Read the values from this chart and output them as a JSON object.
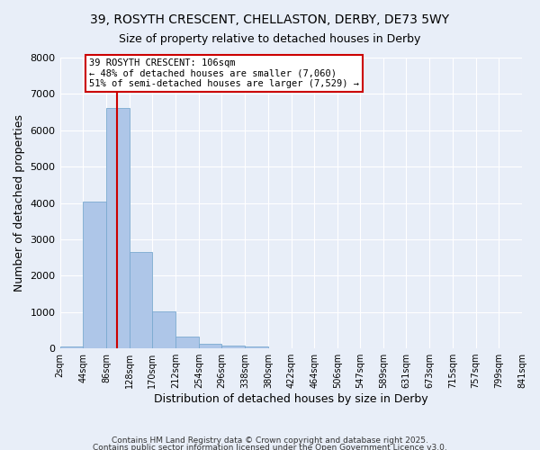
{
  "title1": "39, ROSYTH CRESCENT, CHELLASTON, DERBY, DE73 5WY",
  "title2": "Size of property relative to detached houses in Derby",
  "xlabel": "Distribution of detached houses by size in Derby",
  "ylabel": "Number of detached properties",
  "bar_color": "#aec6e8",
  "bar_edge_color": "#7aaad0",
  "background_color": "#e8eef8",
  "grid_color": "#ffffff",
  "vline_color": "#cc0000",
  "vline_x": 106,
  "annotation_text": "39 ROSYTH CRESCENT: 106sqm\n← 48% of detached houses are smaller (7,060)\n51% of semi-detached houses are larger (7,529) →",
  "annotation_box_color": "#ffffff",
  "annotation_box_edge_color": "#cc0000",
  "bins": [
    2,
    44,
    86,
    128,
    170,
    212,
    254,
    296,
    338,
    380,
    422,
    464,
    506,
    547,
    589,
    631,
    673,
    715,
    757,
    799,
    841
  ],
  "counts": [
    60,
    4050,
    6620,
    2650,
    1010,
    330,
    130,
    80,
    60,
    0,
    0,
    0,
    0,
    0,
    0,
    0,
    0,
    0,
    0,
    0
  ],
  "ylim": [
    0,
    8000
  ],
  "yticks": [
    0,
    1000,
    2000,
    3000,
    4000,
    5000,
    6000,
    7000,
    8000
  ],
  "tick_labels": [
    "2sqm",
    "44sqm",
    "86sqm",
    "128sqm",
    "170sqm",
    "212sqm",
    "254sqm",
    "296sqm",
    "338sqm",
    "380sqm",
    "422sqm",
    "464sqm",
    "506sqm",
    "547sqm",
    "589sqm",
    "631sqm",
    "673sqm",
    "715sqm",
    "757sqm",
    "799sqm",
    "841sqm"
  ],
  "footer1": "Contains HM Land Registry data © Crown copyright and database right 2025.",
  "footer2": "Contains public sector information licensed under the Open Government Licence v3.0."
}
